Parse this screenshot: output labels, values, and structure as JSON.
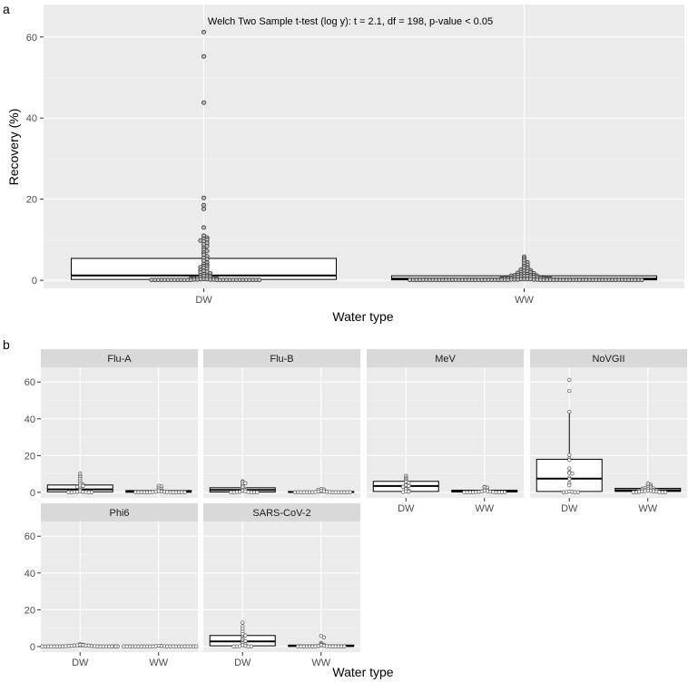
{
  "chart_data": [
    {
      "panel_label": "a",
      "type": "boxplot",
      "annotation": "Welch Two Sample t-test (log y): t = 2.1, df = 198, p-value < 0.05",
      "xlabel": "Water type",
      "ylabel": "Recovery (%)",
      "categories": [
        "DW",
        "WW"
      ],
      "ylim": [
        -2,
        68
      ],
      "yticks": [
        0,
        20,
        40,
        60
      ],
      "boxes": [
        {
          "category": "DW",
          "q1": 0.2,
          "median": 1.2,
          "q3": 5.4
        },
        {
          "category": "WW",
          "q1": 0.1,
          "median": 0.4,
          "q3": 1.1
        }
      ],
      "points": {
        "DW": [
          61.2,
          55.2,
          43.8,
          20.3,
          18.5,
          17.6,
          13.0,
          11.0,
          10.5,
          10.2,
          10.0,
          9.8,
          9.6,
          9.2,
          8.8,
          8.4,
          8.0,
          7.5,
          7.2,
          6.8,
          6.3,
          5.9,
          5.5,
          5.2,
          4.8,
          4.4,
          4.0,
          3.8,
          3.5,
          3.4,
          3.2,
          3.0,
          2.8,
          2.5,
          2.3,
          2.1,
          1.9,
          1.7,
          1.5,
          1.3,
          1.2,
          1.1,
          1.0,
          0.9,
          0.8,
          0.7,
          0.6,
          0.5,
          0.5,
          0.4,
          0.4,
          0.3,
          0.3,
          0.3,
          0.2,
          0.2,
          0.2,
          0.2,
          0.1,
          0.1,
          0.1,
          0.1,
          0.1,
          0.1,
          0.1,
          0.1,
          0.1,
          0.1,
          0.1,
          0.1,
          0.1,
          0.1,
          0.1,
          0.1,
          0.1,
          0.1,
          0.1,
          0.1,
          0.1,
          0.1,
          0.1,
          0.1,
          0.1,
          0.1,
          0.1
        ],
        "WW": [
          5.8,
          5.3,
          4.8,
          4.4,
          4.1,
          3.8,
          3.5,
          3.2,
          3.0,
          2.8,
          2.6,
          2.4,
          2.3,
          2.2,
          2.0,
          1.9,
          1.8,
          1.7,
          1.6,
          1.5,
          1.4,
          1.3,
          1.3,
          1.2,
          1.2,
          1.1,
          1.1,
          1.0,
          1.0,
          0.9,
          0.9,
          0.8,
          0.8,
          0.7,
          0.7,
          0.6,
          0.6,
          0.5,
          0.5,
          0.5,
          0.4,
          0.4,
          0.4,
          0.3,
          0.3,
          0.3,
          0.3,
          0.2,
          0.2,
          0.2,
          0.2,
          0.2,
          0.1,
          0.1,
          0.1,
          0.1,
          0.1,
          0.1,
          0.1,
          0.1,
          0.1,
          0.1,
          0.1,
          0.1,
          0.1,
          0.1,
          0.1,
          0.1,
          0.1,
          0.1,
          0.1,
          0.1,
          0.1,
          0.1,
          0.1,
          0.1,
          0.1,
          0.1,
          0.1,
          0.1,
          0.1,
          0.1,
          0.1,
          0.1,
          0.1,
          0.1,
          0.1,
          0.1,
          0.1,
          0.1,
          0.1,
          0.1,
          0.1,
          0.1,
          0.1,
          0.1,
          0.1,
          0.1,
          0.1,
          0.1,
          0.1,
          0.1,
          0.1,
          0.1,
          0.1,
          0.1,
          0.1,
          0.1,
          0.1,
          0.1,
          0.1,
          0.1,
          0.1,
          0.1,
          0.1
        ]
      }
    },
    {
      "panel_label": "b",
      "type": "boxplot-faceted",
      "xlabel": "Water type",
      "categories": [
        "DW",
        "WW"
      ],
      "ylim": [
        -3,
        68
      ],
      "yticks": [
        0,
        20,
        40,
        60
      ],
      "facets": [
        {
          "name": "Flu-A",
          "boxes": [
            {
              "category": "DW",
              "q1": 0.3,
              "median": 1.6,
              "q3": 4.0,
              "whisker_low": 0.0,
              "whisker_high": 9.9
            },
            {
              "category": "WW",
              "q1": 0.1,
              "median": 0.4,
              "q3": 1.0,
              "whisker_low": 0.0,
              "whisker_high": 2.0
            }
          ],
          "points": {
            "DW": [
              10.2,
              9.0,
              8.3,
              7.2,
              6.0,
              4.8,
              4.2,
              3.6,
              3.5,
              3.0,
              2.2,
              1.5,
              0.6,
              0.3,
              0.3,
              0.2,
              0.2,
              0.1,
              0.1,
              0.1,
              0.1
            ],
            "WW": [
              3.6,
              3.2,
              2.5,
              2.0,
              1.6,
              1.0,
              0.7,
              0.5,
              0.4,
              0.3,
              0.2,
              0.2,
              0.1,
              0.1,
              0.1,
              0.1,
              0.1,
              0.1,
              0.1,
              0.1,
              0.1,
              0.1,
              0.1,
              0.1
            ]
          }
        },
        {
          "name": "Flu-B",
          "boxes": [
            {
              "category": "DW",
              "q1": 0.2,
              "median": 1.3,
              "q3": 2.5,
              "whisker_low": 0.0,
              "whisker_high": 5.5
            },
            {
              "category": "WW",
              "q1": 0.1,
              "median": 0.2,
              "q3": 0.5,
              "whisker_low": 0.0,
              "whisker_high": 1.2
            }
          ],
          "points": {
            "DW": [
              6.0,
              5.5,
              5.0,
              4.2,
              3.3,
              2.6,
              2.0,
              1.5,
              1.3,
              0.9,
              0.6,
              0.3,
              0.2,
              0.2,
              0.1,
              0.1,
              0.1,
              0.1,
              0.1
            ],
            "WW": [
              1.9,
              1.6,
              1.3,
              0.9,
              0.6,
              0.4,
              0.3,
              0.2,
              0.2,
              0.1,
              0.1,
              0.1,
              0.1,
              0.1,
              0.1,
              0.1,
              0.1,
              0.1,
              0.1,
              0.1,
              0.1,
              0.1,
              0.1
            ]
          }
        },
        {
          "name": "MeV",
          "boxes": [
            {
              "category": "DW",
              "q1": 0.5,
              "median": 3.5,
              "q3": 6.0,
              "whisker_low": 0.0,
              "whisker_high": 9.0
            },
            {
              "category": "WW",
              "q1": 0.2,
              "median": 0.5,
              "q3": 1.2,
              "whisker_low": 0.0,
              "whisker_high": 3.0
            }
          ],
          "points": {
            "DW": [
              9.0,
              8.0,
              7.2,
              6.5,
              5.8,
              5.2,
              4.5,
              3.8,
              3.5,
              3.0,
              2.3,
              1.8,
              1.0,
              0.6,
              0.4,
              0.2
            ],
            "WW": [
              3.0,
              2.8,
              2.5,
              1.6,
              1.2,
              0.9,
              0.7,
              0.5,
              0.4,
              0.3,
              0.2,
              0.2,
              0.1,
              0.1,
              0.1,
              0.1,
              0.1,
              0.1,
              0.1,
              0.1
            ]
          }
        },
        {
          "name": "NoVGII",
          "boxes": [
            {
              "category": "DW",
              "q1": 0.5,
              "median": 7.5,
              "q3": 18.0,
              "whisker_low": 0.0,
              "whisker_high": 43.8
            },
            {
              "category": "WW",
              "q1": 0.5,
              "median": 1.2,
              "q3": 2.2,
              "whisker_low": 0.0,
              "whisker_high": 4.8
            }
          ],
          "points": {
            "DW": [
              61.2,
              55.2,
              43.8,
              20.3,
              18.5,
              17.6,
              13.0,
              11.0,
              10.5,
              10.2,
              8.0,
              7.2,
              5.0,
              3.8,
              0.5,
              0.3,
              0.2,
              0.1,
              0.1,
              0.1
            ],
            "WW": [
              4.8,
              4.2,
              3.6,
              3.2,
              2.8,
              2.6,
              2.4,
              2.2,
              2.0,
              1.8,
              1.6,
              1.5,
              1.3,
              1.2,
              1.1,
              1.0,
              0.9,
              0.8,
              0.7,
              0.6,
              0.5,
              0.4,
              0.3,
              0.2,
              0.1,
              0.1,
              0.1,
              0.1
            ]
          }
        },
        {
          "name": "Phi6",
          "boxes": [
            {
              "category": "DW",
              "q1": 0.1,
              "median": 0.3,
              "q3": 0.7,
              "whisker_low": 0.0,
              "whisker_high": 1.3
            },
            {
              "category": "WW",
              "q1": 0.05,
              "median": 0.1,
              "q3": 0.2,
              "whisker_low": 0.0,
              "whisker_high": 0.4
            }
          ],
          "points": {
            "DW": [
              1.3,
              1.0,
              0.9,
              0.8,
              0.7,
              0.6,
              0.6,
              0.5,
              0.4,
              0.3,
              0.3,
              0.2,
              0.2,
              0.1,
              0.1,
              0.1,
              0.1,
              0.1,
              0.1,
              0.1,
              0.1,
              0.1,
              0.1,
              0.1,
              0.1,
              0.1,
              0.1,
              0.1,
              0.1,
              0.1
            ],
            "WW": [
              0.4,
              0.3,
              0.2,
              0.2,
              0.1,
              0.1,
              0.1,
              0.1,
              0.1,
              0.1,
              0.1,
              0.1,
              0.1,
              0.1,
              0.1,
              0.1,
              0.1,
              0.1,
              0.1,
              0.1,
              0.1,
              0.1,
              0.1,
              0.1,
              0.1,
              0.1
            ]
          }
        },
        {
          "name": "SARS-CoV-2",
          "boxes": [
            {
              "category": "DW",
              "q1": 0.4,
              "median": 2.8,
              "q3": 6.0,
              "whisker_low": 0.0,
              "whisker_high": 13.0
            },
            {
              "category": "WW",
              "q1": 0.1,
              "median": 0.3,
              "q3": 0.8,
              "whisker_low": 0.0,
              "whisker_high": 1.8
            }
          ],
          "points": {
            "DW": [
              13.0,
              11.0,
              9.5,
              8.0,
              6.8,
              6.0,
              5.0,
              4.2,
              3.6,
              3.0,
              2.5,
              1.8,
              1.2,
              0.8,
              0.4,
              0.2,
              0.1,
              0.1,
              0.1,
              0.1
            ],
            "WW": [
              5.8,
              5.0,
              2.0,
              1.5,
              1.0,
              0.8,
              0.5,
              0.3,
              0.2,
              0.1,
              0.1,
              0.1,
              0.1,
              0.1,
              0.1,
              0.1,
              0.1,
              0.1,
              0.1,
              0.1,
              0.1,
              0.1
            ]
          }
        }
      ]
    }
  ]
}
